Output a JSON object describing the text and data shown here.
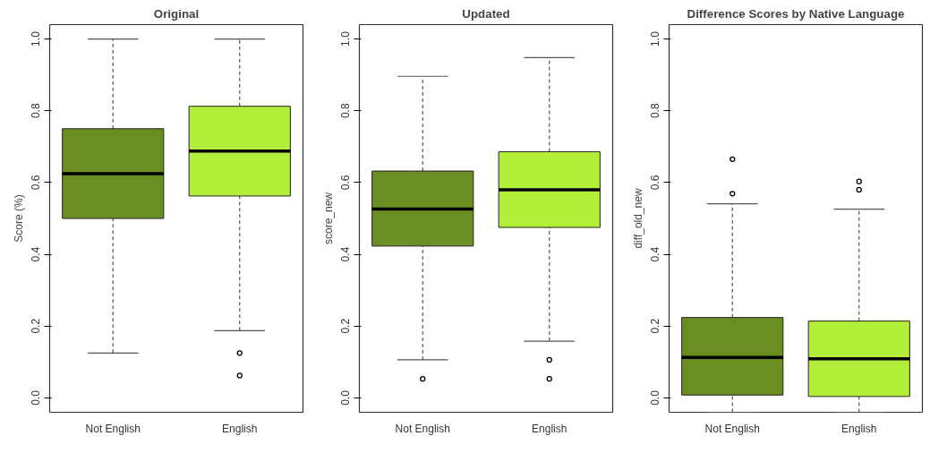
{
  "chart_data": [
    {
      "type": "box",
      "title": "Original",
      "ylabel": "Score (%)",
      "categories": [
        "Not English",
        "English"
      ],
      "colors": [
        "#6b8e23",
        "#b3ee3a"
      ],
      "boxes": [
        {
          "low": 0.125,
          "q1": 0.5,
          "median": 0.625,
          "q3": 0.75,
          "high": 1.0
        },
        {
          "low": 0.1875,
          "q1": 0.5625,
          "median": 0.6875,
          "q3": 0.8125,
          "high": 1.0,
          "outliers": [
            0.125,
            0.0625
          ]
        }
      ],
      "ylim": [
        -0.04,
        1.04
      ],
      "yticks": [
        {
          "value": 0,
          "label": "0.0"
        },
        {
          "value": 0.2,
          "label": "0.2"
        },
        {
          "value": 0.4,
          "label": "0.4"
        },
        {
          "value": 0.6,
          "label": "0.6"
        },
        {
          "value": 0.8,
          "label": "0.8"
        },
        {
          "value": 1.0,
          "label": "1.0"
        }
      ]
    },
    {
      "type": "box",
      "title": "Updated",
      "ylabel": "score_new",
      "categories": [
        "Not English",
        "English"
      ],
      "colors": [
        "#6b8e23",
        "#b3ee3a"
      ],
      "boxes": [
        {
          "low": 0.106,
          "q1": 0.423,
          "median": 0.526,
          "q3": 0.632,
          "high": 0.896,
          "outliers": [
            0.053
          ]
        },
        {
          "low": 0.158,
          "q1": 0.475,
          "median": 0.58,
          "q3": 0.686,
          "high": 0.948,
          "outliers": [
            0.106,
            0.053
          ]
        }
      ],
      "ylim": [
        -0.04,
        1.04
      ],
      "yticks": [
        {
          "value": 0,
          "label": "0.0"
        },
        {
          "value": 0.2,
          "label": "0.2"
        },
        {
          "value": 0.4,
          "label": "0.4"
        },
        {
          "value": 0.6,
          "label": "0.6"
        },
        {
          "value": 0.8,
          "label": "0.8"
        },
        {
          "value": 1.0,
          "label": "1.0"
        }
      ]
    },
    {
      "type": "box",
      "title": "Difference Scores by Native Language",
      "ylabel": "diff_old_new",
      "categories": [
        "Not English",
        "English"
      ],
      "colors": [
        "#6b8e23",
        "#b3ee3a"
      ],
      "boxes": [
        {
          "low": -0.04,
          "q1": 0.008,
          "median": 0.113,
          "q3": 0.224,
          "high": 0.541,
          "outliers": [
            0.665,
            0.569
          ]
        },
        {
          "low": -0.04,
          "q1": 0.004,
          "median": 0.109,
          "q3": 0.214,
          "high": 0.526,
          "outliers": [
            0.603,
            0.58
          ]
        }
      ],
      "ylim": [
        -0.04,
        1.04
      ],
      "yticks": [
        {
          "value": 0,
          "label": "0.0"
        },
        {
          "value": 0.2,
          "label": "0.2"
        },
        {
          "value": 0.4,
          "label": "0.4"
        },
        {
          "value": 0.6,
          "label": "0.6"
        },
        {
          "value": 0.8,
          "label": "0.8"
        },
        {
          "value": 1.0,
          "label": "1.0"
        }
      ]
    }
  ]
}
